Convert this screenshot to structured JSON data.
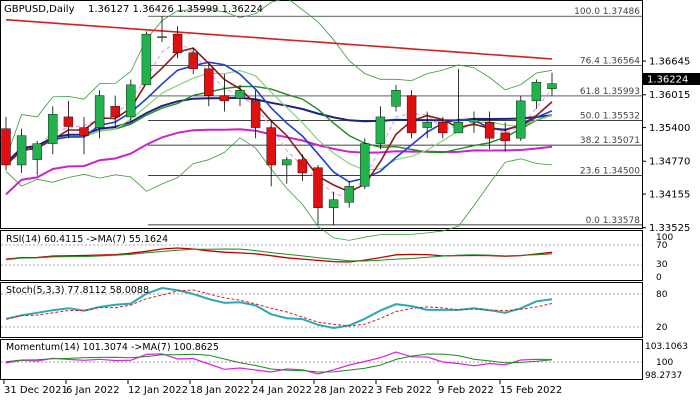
{
  "header": {
    "symbol": "GBPUSD,Daily",
    "ohlc": "1.36127 1.36426 1.35999 1.36224"
  },
  "colors": {
    "bull": "#22b14c",
    "bear": "#e01010",
    "ma_red": "#d42020",
    "ma_darkred": "#8b1a1a",
    "ma_green": "#1f8a1f",
    "ma_darkblue": "#1a237e",
    "ma_blue": "#1f3fd0",
    "ma_magenta": "#cc22cc",
    "ma_pink": "#f0a0e0",
    "ma_lime": "#8cd07a",
    "bb": "#3a9a3a",
    "current_tag": "#000000",
    "rsi": "#c00000",
    "rsi_ma": "#228b22",
    "stoch_main": "#2aa9b5",
    "stoch_signal": "#d02020",
    "mom": "#e020e0",
    "mom_ma": "#1f8a1f"
  },
  "price_axis": {
    "ticks": [
      "1.36645",
      "1.36015",
      "1.35400",
      "1.34770",
      "1.34155",
      "1.33525"
    ],
    "current": "1.36224"
  },
  "fibonacci": [
    {
      "label": "100.0 1.37486"
    },
    {
      "label": "76.4 1.36564"
    },
    {
      "label": "61.8 1.35993"
    },
    {
      "label": "50.0 1.35532"
    },
    {
      "label": "38.2 1.35071"
    },
    {
      "label": "23.6 1.34500"
    },
    {
      "label": "0.0 1.33578"
    }
  ],
  "date_axis": [
    "31 Dec 2021",
    "6 Jan 2022",
    "12 Jan 2022",
    "18 Jan 2022",
    "24 Jan 2022",
    "28 Jan 2022",
    "3 Feb 2022",
    "9 Feb 2022",
    "15 Feb 2022"
  ],
  "rsi_pane": {
    "title": "RSI(14) 60.4115  ->MA(7) 55.1624",
    "levels": [
      "100",
      "70",
      "30",
      "0"
    ]
  },
  "stoch_pane": {
    "title": "Stoch(5,3,3) 77.8112 58.0088",
    "levels": [
      "80",
      "20"
    ]
  },
  "momentum_pane": {
    "title": "Momentum(14) 101.3074  ->MA(7) 100.8625",
    "levels": [
      "103.1063",
      "100",
      "98.2737"
    ]
  },
  "chart_data": {
    "type": "candlestick",
    "title": "GBPUSD,Daily",
    "ohlc_last": {
      "open": 1.36127,
      "high": 1.36426,
      "low": 1.35999,
      "close": 1.36224
    },
    "ylim": [
      1.3352,
      1.3777
    ],
    "candles": [
      {
        "o": 1.3538,
        "h": 1.356,
        "l": 1.346,
        "c": 1.347
      },
      {
        "o": 1.347,
        "h": 1.3538,
        "l": 1.3455,
        "c": 1.3525
      },
      {
        "o": 1.348,
        "h": 1.3515,
        "l": 1.345,
        "c": 1.351
      },
      {
        "o": 1.351,
        "h": 1.358,
        "l": 1.349,
        "c": 1.3565
      },
      {
        "o": 1.356,
        "h": 1.359,
        "l": 1.352,
        "c": 1.3542
      },
      {
        "o": 1.354,
        "h": 1.356,
        "l": 1.349,
        "c": 1.3525
      },
      {
        "o": 1.354,
        "h": 1.361,
        "l": 1.352,
        "c": 1.36
      },
      {
        "o": 1.358,
        "h": 1.36,
        "l": 1.354,
        "c": 1.356
      },
      {
        "o": 1.356,
        "h": 1.363,
        "l": 1.355,
        "c": 1.362
      },
      {
        "o": 1.362,
        "h": 1.372,
        "l": 1.362,
        "c": 1.3715
      },
      {
        "o": 1.371,
        "h": 1.3749,
        "l": 1.37,
        "c": 1.371
      },
      {
        "o": 1.3715,
        "h": 1.373,
        "l": 1.367,
        "c": 1.368
      },
      {
        "o": 1.368,
        "h": 1.369,
        "l": 1.364,
        "c": 1.365
      },
      {
        "o": 1.365,
        "h": 1.366,
        "l": 1.358,
        "c": 1.36
      },
      {
        "o": 1.36,
        "h": 1.364,
        "l": 1.357,
        "c": 1.359
      },
      {
        "o": 1.3595,
        "h": 1.362,
        "l": 1.358,
        "c": 1.361
      },
      {
        "o": 1.359,
        "h": 1.361,
        "l": 1.352,
        "c": 1.354
      },
      {
        "o": 1.354,
        "h": 1.3555,
        "l": 1.343,
        "c": 1.347
      },
      {
        "o": 1.347,
        "h": 1.3485,
        "l": 1.3435,
        "c": 1.348
      },
      {
        "o": 1.348,
        "h": 1.349,
        "l": 1.344,
        "c": 1.3455
      },
      {
        "o": 1.3465,
        "h": 1.347,
        "l": 1.3358,
        "c": 1.339
      },
      {
        "o": 1.339,
        "h": 1.342,
        "l": 1.3358,
        "c": 1.3405
      },
      {
        "o": 1.34,
        "h": 1.344,
        "l": 1.339,
        "c": 1.343
      },
      {
        "o": 1.343,
        "h": 1.352,
        "l": 1.3425,
        "c": 1.351
      },
      {
        "o": 1.351,
        "h": 1.358,
        "l": 1.35,
        "c": 1.356
      },
      {
        "o": 1.358,
        "h": 1.362,
        "l": 1.357,
        "c": 1.361
      },
      {
        "o": 1.36,
        "h": 1.361,
        "l": 1.352,
        "c": 1.353
      },
      {
        "o": 1.354,
        "h": 1.357,
        "l": 1.352,
        "c": 1.355
      },
      {
        "o": 1.355,
        "h": 1.356,
        "l": 1.352,
        "c": 1.353
      },
      {
        "o": 1.353,
        "h": 1.365,
        "l": 1.353,
        "c": 1.355
      },
      {
        "o": 1.355,
        "h": 1.357,
        "l": 1.353,
        "c": 1.3555
      },
      {
        "o": 1.355,
        "h": 1.357,
        "l": 1.35,
        "c": 1.352
      },
      {
        "o": 1.353,
        "h": 1.355,
        "l": 1.3495,
        "c": 1.3515
      },
      {
        "o": 1.352,
        "h": 1.36,
        "l": 1.3515,
        "c": 1.359
      },
      {
        "o": 1.359,
        "h": 1.363,
        "l": 1.3575,
        "c": 1.3625
      },
      {
        "o": 1.36127,
        "h": 1.36426,
        "l": 1.35999,
        "c": 1.36224
      }
    ]
  }
}
